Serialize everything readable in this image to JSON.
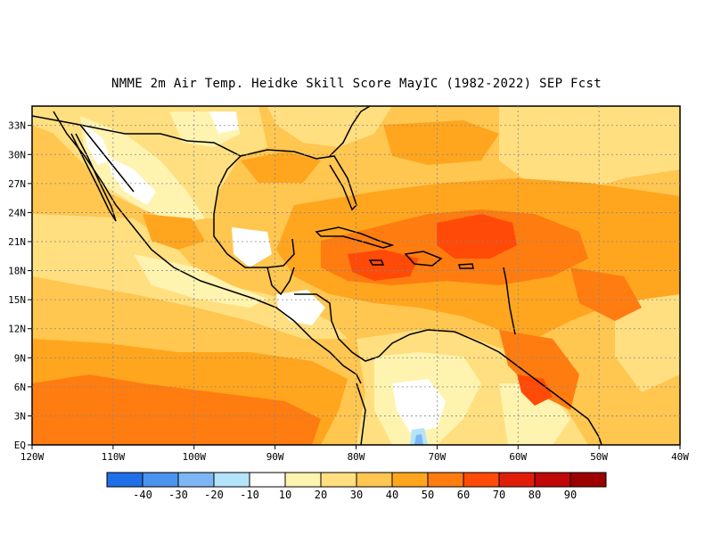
{
  "title": "NMME  2m Air Temp. Heidke Skill Score MayIC (1982-2022) SEP Fcst",
  "map": {
    "lon_range": [
      -120,
      -40
    ],
    "lat_range": [
      0,
      35
    ],
    "lon_ticks": [
      {
        "value": -120,
        "label": "120W"
      },
      {
        "value": -110,
        "label": "110W"
      },
      {
        "value": -100,
        "label": "100W"
      },
      {
        "value": -90,
        "label": "90W"
      },
      {
        "value": -80,
        "label": "80W"
      },
      {
        "value": -70,
        "label": "70W"
      },
      {
        "value": -60,
        "label": "60W"
      },
      {
        "value": -50,
        "label": "50W"
      },
      {
        "value": -40,
        "label": "40W"
      }
    ],
    "lat_ticks": [
      {
        "value": 0,
        "label": "EQ"
      },
      {
        "value": 3,
        "label": "3N"
      },
      {
        "value": 6,
        "label": "6N"
      },
      {
        "value": 9,
        "label": "9N"
      },
      {
        "value": 12,
        "label": "12N"
      },
      {
        "value": 15,
        "label": "15N"
      },
      {
        "value": 18,
        "label": "18N"
      },
      {
        "value": 21,
        "label": "21N"
      },
      {
        "value": 24,
        "label": "24N"
      },
      {
        "value": 27,
        "label": "27N"
      },
      {
        "value": 30,
        "label": "30N"
      },
      {
        "value": 33,
        "label": "33N"
      }
    ]
  },
  "colorbar": {
    "labels": [
      "-40",
      "-30",
      "-20",
      "-10",
      "10",
      "20",
      "30",
      "40",
      "50",
      "60",
      "70",
      "80",
      "90"
    ],
    "colors": [
      "#1f6fe8",
      "#4a93ee",
      "#7db6f4",
      "#b4e4fa",
      "#ffffff",
      "#fff3b0",
      "#ffdf80",
      "#ffc650",
      "#ffa51e",
      "#ff7c10",
      "#ff4a08",
      "#e01e08",
      "#c00808",
      "#9c0000"
    ]
  },
  "colors": {
    "base_fill": "#ffc650",
    "light": "#ffdf80",
    "pale": "#fff3b0",
    "white": "#ffffff",
    "orange": "#ffa51e",
    "dark_orange": "#ff7c10",
    "red_orange": "#ff4a08",
    "blue": "#b4e4fa",
    "blue2": "#7db6f4"
  }
}
